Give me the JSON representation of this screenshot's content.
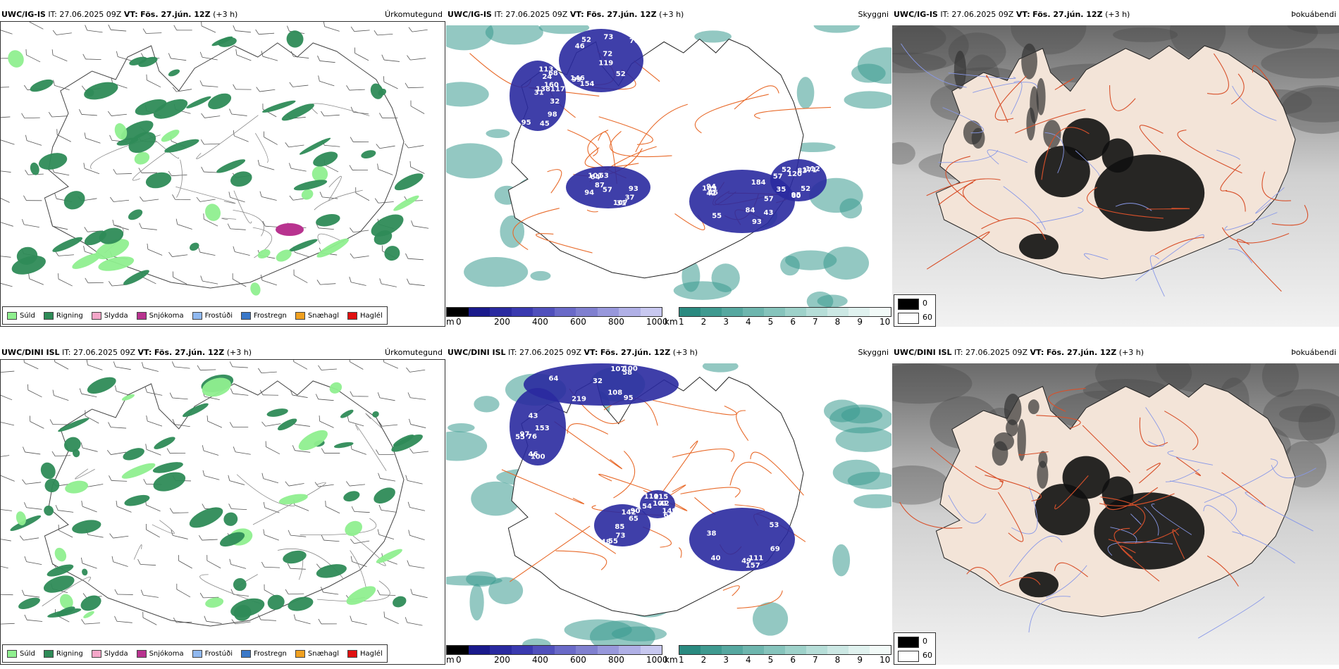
{
  "rows": [
    {
      "precip": {
        "model": "UWC/IG-IS",
        "it_label": "IT:",
        "it_value": "27.06.2025 09Z",
        "vt_label": "VT:",
        "vt_value": "Fös. 27.jún. 12Z",
        "lead": "(+3 h)",
        "title": "Úrkomutegund"
      },
      "vis": {
        "model": "UWC/IG-IS",
        "it_label": "IT:",
        "it_value": "27.06.2025 09Z",
        "vt_label": "VT:",
        "vt_value": "Fös. 27.jún. 12Z",
        "lead": "(+3 h)",
        "title": "Skyggni",
        "labels": [
          "52",
          "160",
          "107",
          "109",
          "112",
          "99",
          "98",
          "57",
          "184",
          "171",
          "146",
          "113",
          "94",
          "42",
          "95",
          "119",
          "138117",
          "101",
          "94",
          "120",
          "73",
          "95",
          "87",
          "93",
          "52",
          "76",
          "68",
          "53",
          "84",
          "60",
          "46",
          "31",
          "37",
          "43",
          "35",
          "154",
          "45",
          "31",
          "55",
          "57",
          "72",
          "32",
          "64",
          "46",
          "52",
          "52",
          "24",
          "93",
          "57",
          "83"
        ]
      },
      "ceil": {
        "model": "UWC/IG-IS",
        "it_label": "IT:",
        "it_value": "27.06.2025 09Z",
        "vt_label": "VT:",
        "vt_value": "Fös. 27.jún. 12Z",
        "lead": "(+3 h)",
        "title": "Þokuábendi"
      }
    },
    {
      "precip": {
        "model": "UWC/DINI ISL",
        "it_label": "IT:",
        "it_value": "27.06.2025 09Z",
        "vt_label": "VT:",
        "vt_value": "Fös. 27.jún. 12Z",
        "lead": "(+3 h)",
        "title": "Úrkomutegund"
      },
      "vis": {
        "model": "UWC/DINI ISL",
        "it_label": "IT:",
        "it_value": "27.06.2025 09Z",
        "vt_label": "VT:",
        "vt_value": "Fös. 27.jún. 12Z",
        "lead": "(+3 h)",
        "title": "Skyggni",
        "labels": [
          "219",
          "153",
          "157",
          "142",
          "115",
          "95",
          "46",
          "40",
          "48",
          "149",
          "107",
          "97",
          "49",
          "55",
          "110",
          "108",
          "100",
          "111",
          "85",
          "101",
          "58",
          "76",
          "69",
          "65",
          "42",
          "100",
          "55",
          "53",
          "73",
          "54",
          "64",
          "43",
          "38",
          "90",
          "61",
          "32"
        ]
      },
      "ceil": {
        "model": "UWC/DINI ISL",
        "it_label": "IT:",
        "it_value": "27.06.2025 09Z",
        "vt_label": "VT:",
        "vt_value": "Fös. 27.jún. 12Z",
        "lead": "(+3 h)",
        "title": "Þokuábendi"
      }
    }
  ],
  "precip_legend": [
    {
      "label": "Súld",
      "color": "#8fef8f"
    },
    {
      "label": "Rigning",
      "color": "#2e8b57"
    },
    {
      "label": "Slydda",
      "color": "#f4a6c8"
    },
    {
      "label": "Snjókoma",
      "color": "#b8338f"
    },
    {
      "label": "Frostúði",
      "color": "#8fb8f0"
    },
    {
      "label": "Frostregn",
      "color": "#3a78c8"
    },
    {
      "label": "Snæhagl",
      "color": "#f0a020"
    },
    {
      "label": "Haglél",
      "color": "#e01010"
    }
  ],
  "ceiling_bar": {
    "unit": "m",
    "ticks": [
      "0",
      "200",
      "400",
      "600",
      "800",
      "1000"
    ],
    "colors": [
      "#000000",
      "#1a1a8c",
      "#2a2aa0",
      "#3a3ab0",
      "#5050bc",
      "#6a6ac8",
      "#8080d0",
      "#9898dc",
      "#b0b0e6",
      "#c8c8f0"
    ]
  },
  "visibility_bar": {
    "unit": "km",
    "ticks": [
      "1",
      "2",
      "3",
      "4",
      "5",
      "6",
      "7",
      "8",
      "9",
      "10"
    ],
    "colors": [
      "#2a8a80",
      "#3f9a90",
      "#56a8a0",
      "#6eb6ae",
      "#86c4bc",
      "#9ed2ca",
      "#b6ded8",
      "#cce8e4",
      "#e0f2ef",
      "#f2faf8"
    ]
  },
  "fog_legend": [
    {
      "label": "0",
      "color": "#000000"
    },
    {
      "label": "60",
      "color": "#ffffff"
    }
  ],
  "colors": {
    "land_ceil": "#f3e4d8",
    "road": "#e86a2a",
    "river": "#8898e8",
    "low_cloud": "#2a2aa0",
    "visibility": "#3a9a90",
    "rain": "#2e8b57",
    "drizzle": "#8fef8f"
  }
}
